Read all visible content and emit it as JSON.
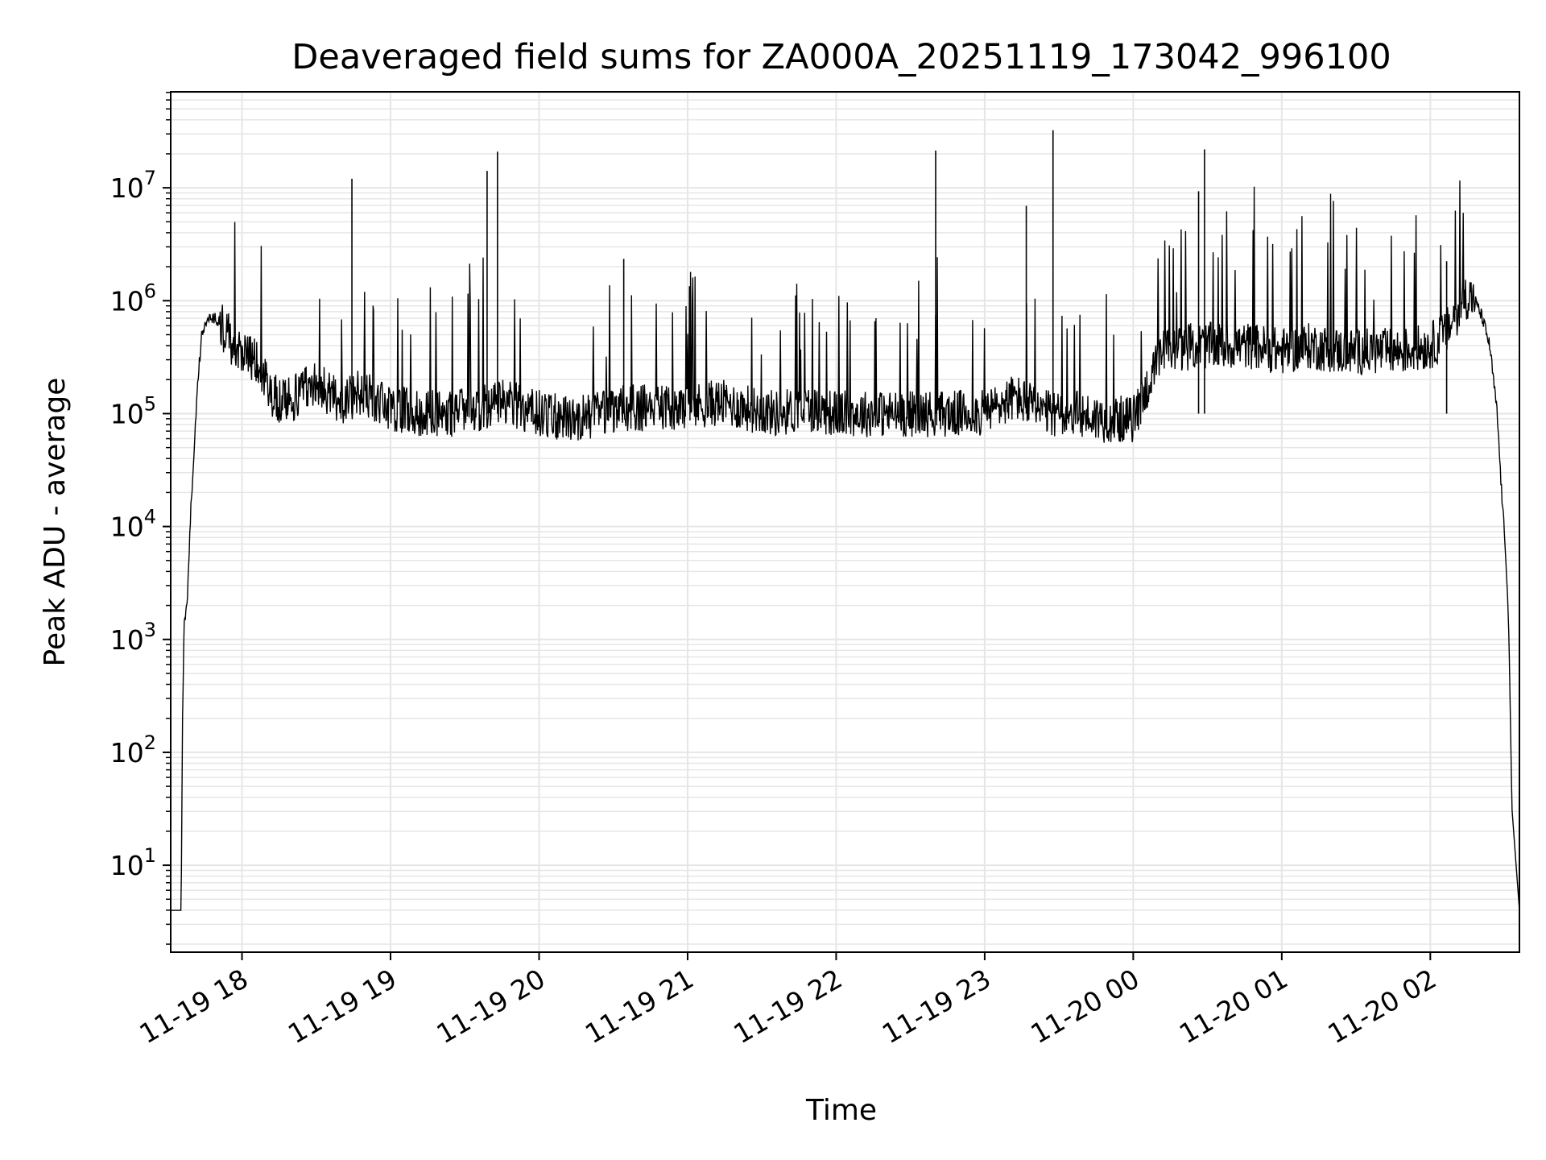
{
  "chart_data": {
    "type": "line",
    "title": "Deaveraged field sums for ZA000A_20251119_173042_996100",
    "xlabel": "Time",
    "ylabel": "Peak ADU - average",
    "yscale": "log",
    "grid": true,
    "grid_minor": true,
    "line_color": "#000000",
    "grid_color": "#e6e6e6",
    "xlim_hours": [
      -0.48,
      8.6
    ],
    "ylim_log10": [
      0.23,
      7.85
    ],
    "x_ticks": [
      {
        "hour": 0,
        "label": "11-19 18"
      },
      {
        "hour": 1,
        "label": "11-19 19"
      },
      {
        "hour": 2,
        "label": "11-19 20"
      },
      {
        "hour": 3,
        "label": "11-19 21"
      },
      {
        "hour": 4,
        "label": "11-19 22"
      },
      {
        "hour": 5,
        "label": "11-19 23"
      },
      {
        "hour": 6,
        "label": "11-20 00"
      },
      {
        "hour": 7,
        "label": "11-20 01"
      },
      {
        "hour": 8,
        "label": "11-20 02"
      }
    ],
    "y_ticks": [
      {
        "exp": 1,
        "base": "10",
        "sup": "1"
      },
      {
        "exp": 2,
        "base": "10",
        "sup": "2"
      },
      {
        "exp": 3,
        "base": "10",
        "sup": "3"
      },
      {
        "exp": 4,
        "base": "10",
        "sup": "4"
      },
      {
        "exp": 5,
        "base": "10",
        "sup": "5"
      },
      {
        "exp": 6,
        "base": "10",
        "sup": "6"
      },
      {
        "exp": 7,
        "base": "10",
        "sup": "7"
      }
    ],
    "series": [
      {
        "name": "peak_adu_minus_average",
        "x_hours": [
          -0.48,
          -0.41,
          -0.4,
          -0.39,
          -0.37,
          -0.35,
          -0.33,
          -0.31,
          -0.29,
          -0.27,
          -0.25,
          -0.22,
          -0.19,
          -0.15,
          -0.1,
          -0.05,
          0.0,
          0.05,
          0.1,
          0.15,
          0.2,
          0.3,
          0.4,
          0.5,
          0.6,
          0.7,
          0.8,
          0.9,
          1.0,
          1.2,
          1.4,
          1.6,
          1.8,
          2.0,
          2.2,
          2.4,
          2.6,
          2.8,
          3.0,
          3.2,
          3.4,
          3.6,
          3.8,
          4.0,
          4.2,
          4.4,
          4.6,
          4.8,
          5.0,
          5.2,
          5.4,
          5.6,
          5.8,
          6.0,
          6.2,
          6.4,
          6.6,
          6.8,
          7.0,
          7.2,
          7.4,
          7.6,
          7.8,
          8.0,
          8.1,
          8.2,
          8.25,
          8.3,
          8.35,
          8.4,
          8.45,
          8.48,
          8.5,
          8.52,
          8.53,
          8.55,
          8.6
        ],
        "y_log10": [
          0.6,
          0.6,
          2.4,
          3.1,
          3.3,
          4.0,
          4.5,
          5.0,
          5.4,
          5.7,
          5.8,
          5.85,
          5.85,
          5.8,
          5.7,
          5.6,
          5.55,
          5.5,
          5.45,
          5.3,
          5.15,
          5.1,
          5.2,
          5.3,
          5.15,
          5.1,
          5.2,
          5.1,
          5.05,
          5.0,
          5.0,
          5.05,
          5.1,
          5.0,
          4.95,
          5.0,
          5.05,
          5.05,
          5.05,
          5.1,
          5.05,
          5.0,
          5.05,
          5.0,
          5.0,
          5.0,
          5.0,
          5.0,
          5.0,
          5.15,
          5.0,
          5.0,
          4.95,
          4.95,
          5.55,
          5.6,
          5.6,
          5.6,
          5.55,
          5.6,
          5.55,
          5.55,
          5.55,
          5.6,
          5.7,
          5.95,
          6.05,
          6.0,
          5.85,
          5.6,
          5.0,
          4.3,
          3.9,
          3.4,
          3.0,
          1.5,
          0.6
        ],
        "spikes": [
          {
            "hour": 0.74,
            "y_log10": 7.08
          },
          {
            "hour": 1.65,
            "y_log10": 7.15
          },
          {
            "hour": 1.72,
            "y_log10": 7.32
          },
          {
            "hour": 2.57,
            "y_log10": 6.37
          },
          {
            "hour": 4.67,
            "y_log10": 7.33
          },
          {
            "hour": 5.28,
            "y_log10": 6.84
          },
          {
            "hour": 5.46,
            "y_log10": 7.51
          },
          {
            "hour": 6.44,
            "y_log10": 6.97
          },
          {
            "hour": 6.48,
            "y_log10": 7.34
          },
          {
            "hour": 8.11,
            "y_log10": 6.35
          }
        ]
      }
    ]
  }
}
